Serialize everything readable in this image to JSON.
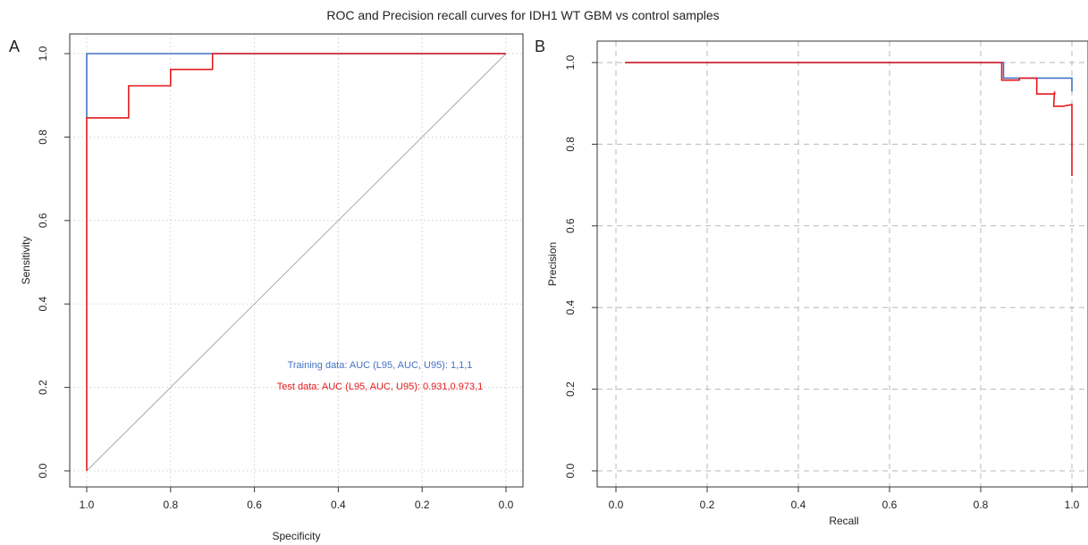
{
  "figure": {
    "title": "ROC and Precision recall curves for IDH1 WT GBM vs control samples"
  },
  "colors": {
    "training": "#4472c4",
    "test": "#e31a1c",
    "diagonal": "#aaaaaa",
    "grid_a": "#d0d0d0",
    "grid_b": "#b8b8b8"
  },
  "chart_data": [
    {
      "panel_label": "A",
      "type": "line",
      "xlabel": "Specificity",
      "ylabel": "Sensitivity",
      "xlim": [
        1.0,
        0.0
      ],
      "ylim": [
        0.0,
        1.0
      ],
      "x_reversed": true,
      "xticks": [
        "1.0",
        "0.8",
        "0.6",
        "0.4",
        "0.2",
        "0.0"
      ],
      "yticks": [
        "0.0",
        "0.2",
        "0.4",
        "0.6",
        "0.8",
        "1.0"
      ],
      "grid": "dotted",
      "reference_line": {
        "from": [
          1.0,
          0.0
        ],
        "to": [
          0.0,
          1.0
        ]
      },
      "series": [
        {
          "color": "#4472c4",
          "x": [
            1.0,
            1.0,
            0.0
          ],
          "y": [
            0.846,
            1.0,
            1.0
          ]
        },
        {
          "color": "#e31a1c",
          "x": [
            1.0,
            1.0,
            0.9,
            0.9,
            0.8,
            0.8,
            0.7,
            0.7,
            0.0
          ],
          "y": [
            0.0,
            0.846,
            0.846,
            0.923,
            0.923,
            0.962,
            0.962,
            1.0,
            1.0
          ]
        }
      ],
      "annotations": [
        {
          "text": "Training data: AUC (L95, AUC, U95): 1,1,1",
          "color": "#4472c4"
        },
        {
          "text": "Test data: AUC (L95, AUC, U95): 0.931,0.973,1",
          "color": "#e31a1c"
        }
      ]
    },
    {
      "panel_label": "B",
      "type": "line",
      "xlabel": "Recall",
      "ylabel": "Precision",
      "xlim": [
        0.0,
        1.0
      ],
      "ylim": [
        0.0,
        1.0
      ],
      "xticks": [
        "0.0",
        "0.2",
        "0.4",
        "0.6",
        "0.8",
        "1.0"
      ],
      "yticks": [
        "0.0",
        "0.2",
        "0.4",
        "0.6",
        "0.8",
        "1.0"
      ],
      "grid": "dashed",
      "series": [
        {
          "color": "#4472c4",
          "x": [
            0.02,
            0.85,
            0.85,
            1.0,
            1.0
          ],
          "y": [
            1.0,
            1.0,
            0.962,
            0.962,
            0.929
          ]
        },
        {
          "color": "#e31a1c",
          "x": [
            0.02,
            0.846,
            0.846,
            0.885,
            0.885,
            0.923,
            0.923,
            0.962,
            0.962,
            0.96,
            0.98,
            1.0,
            1.0
          ],
          "y": [
            1.0,
            1.0,
            0.957,
            0.957,
            0.962,
            0.962,
            0.923,
            0.923,
            0.929,
            0.893,
            0.893,
            0.897,
            0.722
          ]
        }
      ]
    }
  ]
}
